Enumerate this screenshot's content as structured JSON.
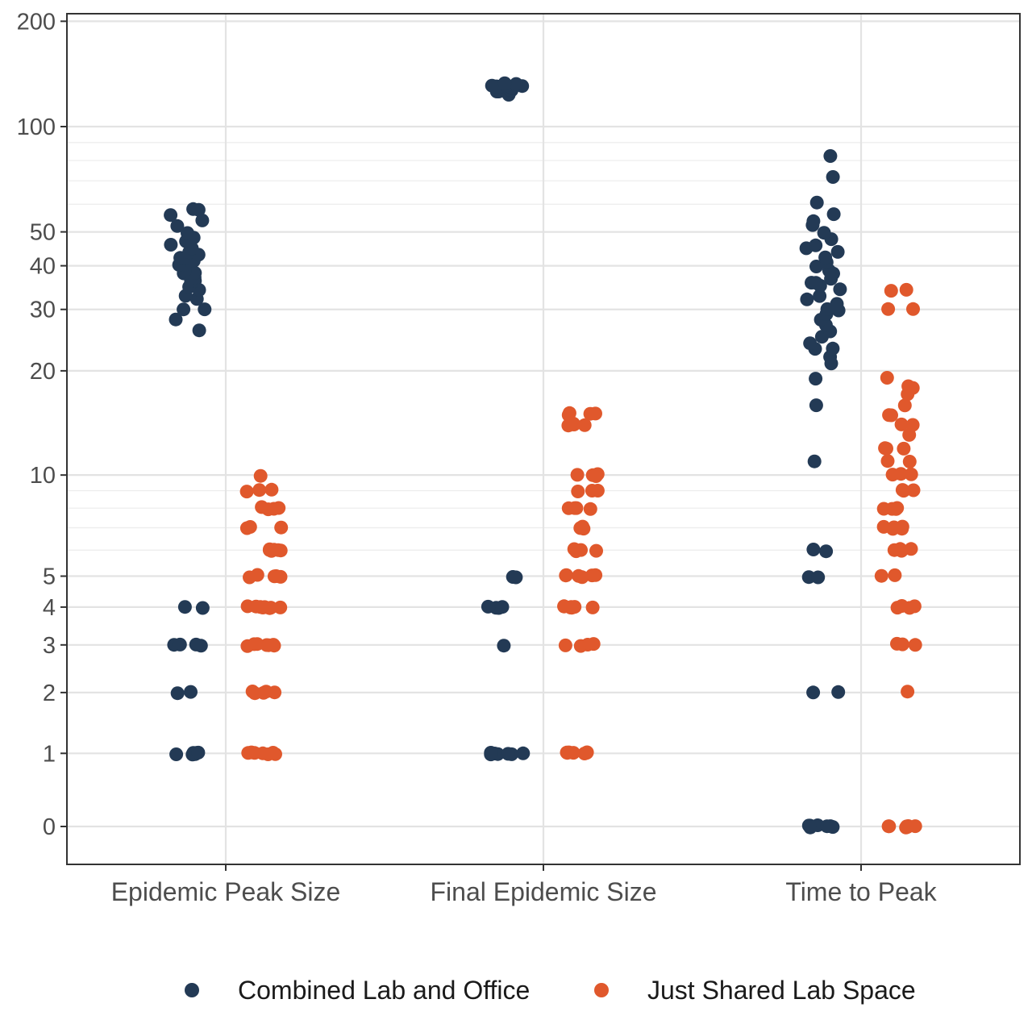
{
  "chart_data": {
    "type": "scatter",
    "title": "",
    "xlabel": "",
    "ylabel": "",
    "y_scale": "pseudo-log",
    "ylim": [
      0,
      200
    ],
    "y_ticks": [
      {
        "value": 0,
        "label": "0"
      },
      {
        "value": 1,
        "label": "1"
      },
      {
        "value": 2,
        "label": "2"
      },
      {
        "value": 3,
        "label": "3"
      },
      {
        "value": 4,
        "label": "4"
      },
      {
        "value": 5,
        "label": "5"
      },
      {
        "value": 10,
        "label": "10"
      },
      {
        "value": 20,
        "label": "20"
      },
      {
        "value": 30,
        "label": "30"
      },
      {
        "value": 40,
        "label": "40"
      },
      {
        "value": 50,
        "label": "50"
      },
      {
        "value": 100,
        "label": "100"
      },
      {
        "value": 200,
        "label": "200"
      }
    ],
    "categories": [
      "Epidemic Peak Size",
      "Final Epidemic Size",
      "Time to Peak"
    ],
    "grid": true,
    "legend_position": "bottom",
    "series": [
      {
        "name": "Combined Lab and Office",
        "color": "#233a55",
        "values_by_category": [
          [
            1,
            1,
            1,
            1,
            1,
            1,
            1,
            2,
            2,
            3,
            3,
            3,
            3,
            4,
            4,
            26,
            28,
            30,
            30,
            32,
            33,
            34,
            35,
            36,
            36,
            37,
            38,
            38,
            39,
            40,
            40,
            41,
            42,
            42,
            43,
            44,
            45,
            46,
            47,
            48,
            50,
            52,
            54,
            56,
            58,
            58
          ],
          [
            1,
            1,
            1,
            1,
            1,
            1,
            1,
            3,
            4,
            4,
            4,
            4,
            5,
            5,
            124,
            125,
            126,
            127,
            127,
            128,
            128,
            129,
            129,
            130,
            130,
            130,
            131,
            131,
            132,
            132,
            133
          ],
          [
            0,
            0,
            0,
            0,
            0,
            0,
            0,
            2,
            2,
            5,
            5,
            6,
            6,
            11,
            16,
            19,
            21,
            22,
            23,
            23,
            24,
            25,
            26,
            27,
            28,
            29,
            30,
            30,
            31,
            32,
            33,
            34,
            35,
            36,
            36,
            37,
            38,
            39,
            40,
            41,
            42,
            44,
            45,
            46,
            48,
            50,
            52,
            54,
            56,
            61,
            72,
            82
          ]
        ]
      },
      {
        "name": "Just Shared Lab Space",
        "color": "#e0582c",
        "values_by_category": [
          [
            1,
            1,
            1,
            1,
            1,
            1,
            1,
            2,
            2,
            2,
            2,
            2,
            3,
            3,
            3,
            3,
            3,
            3,
            3,
            4,
            4,
            4,
            4,
            4,
            4,
            4,
            4,
            5,
            5,
            5,
            5,
            5,
            6,
            6,
            6,
            6,
            6,
            6,
            7,
            7,
            7,
            8,
            8,
            8,
            8,
            9,
            9,
            9,
            10
          ],
          [
            1,
            1,
            1,
            1,
            1,
            1,
            1,
            3,
            3,
            3,
            3,
            4,
            4,
            4,
            4,
            4,
            4,
            4,
            5,
            5,
            5,
            5,
            5,
            5,
            6,
            6,
            6,
            6,
            6,
            7,
            7,
            7,
            8,
            8,
            8,
            8,
            9,
            9,
            9,
            10,
            10,
            10,
            10,
            14,
            14,
            14,
            14,
            15,
            15,
            15,
            15
          ],
          [
            0,
            0,
            0,
            0,
            0,
            0,
            0,
            2,
            3,
            3,
            3,
            4,
            4,
            4,
            4,
            5,
            5,
            6,
            6,
            6,
            6,
            7,
            7,
            7,
            7,
            7,
            8,
            8,
            8,
            8,
            9,
            9,
            9,
            10,
            10,
            10,
            11,
            11,
            12,
            12,
            12,
            13,
            14,
            14,
            15,
            15,
            16,
            17,
            18,
            18,
            19,
            30,
            30,
            34,
            34
          ]
        ]
      }
    ]
  }
}
